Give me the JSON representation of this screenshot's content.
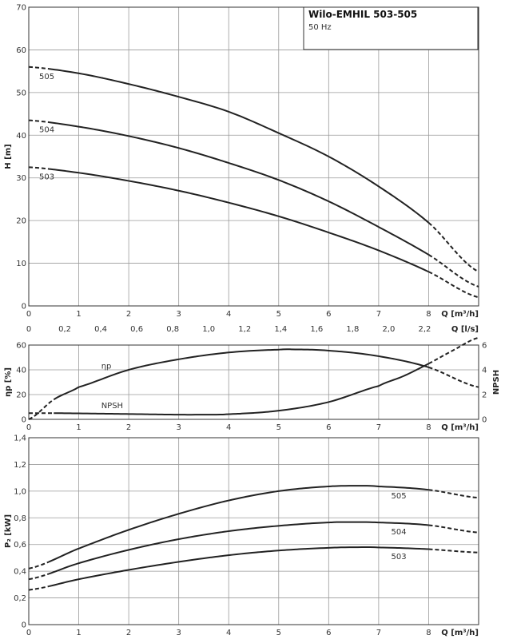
{
  "header": {
    "title": "Wilo-EMHIL 503-505",
    "subtitle": "50 Hz"
  },
  "chart_data": [
    {
      "type": "line",
      "name": "head",
      "ylabel": "H [m]",
      "xlabel": "Q [m³/h]",
      "xlabel2": "Q [l/s]",
      "xlim": [
        0,
        9
      ],
      "ylim": [
        0,
        70
      ],
      "xticks": [
        "0",
        "1",
        "2",
        "3",
        "4",
        "5",
        "6",
        "7",
        "8"
      ],
      "x2ticks": [
        "0",
        "0,2",
        "0,4",
        "0,6",
        "0,8",
        "1,0",
        "1,2",
        "1,4",
        "1,6",
        "1,8",
        "2,0",
        "2,2"
      ],
      "yticks": [
        "0",
        "10",
        "20",
        "30",
        "40",
        "50",
        "60",
        "70"
      ],
      "grid": true,
      "series": [
        {
          "name": "505",
          "x": [
            0,
            1,
            2,
            3,
            4,
            5,
            6,
            7,
            8,
            9
          ],
          "y": [
            56,
            54.5,
            52,
            49,
            45.5,
            40.5,
            35,
            28,
            19.5,
            8
          ]
        },
        {
          "name": "504",
          "x": [
            0,
            1,
            2,
            3,
            4,
            5,
            6,
            7,
            8,
            9
          ],
          "y": [
            43.5,
            42,
            39.8,
            37,
            33.5,
            29.5,
            24.5,
            18.5,
            12,
            4.5
          ]
        },
        {
          "name": "503",
          "x": [
            0,
            1,
            2,
            3,
            4,
            5,
            6,
            7,
            8,
            9
          ],
          "y": [
            32.5,
            31.2,
            29.3,
            27,
            24.2,
            21,
            17.2,
            13,
            8,
            2
          ]
        }
      ],
      "solid_range": [
        0.4,
        8
      ]
    },
    {
      "type": "line",
      "name": "efficiency_npsh",
      "ylabel": "ηp [%]",
      "y2label": "NPSH",
      "xlabel": "Q [m³/h]",
      "xlim": [
        0,
        9
      ],
      "ylim": [
        0,
        60
      ],
      "y2lim": [
        0,
        6
      ],
      "xticks": [
        "0",
        "1",
        "2",
        "3",
        "4",
        "5",
        "6",
        "7",
        "8"
      ],
      "yticks": [
        "0",
        "20",
        "40",
        "60"
      ],
      "y2ticks": [
        "0",
        "2",
        "4",
        "6"
      ],
      "grid": true,
      "series": [
        {
          "name": "ηp",
          "x": [
            0,
            0.5,
            1,
            2,
            3,
            4,
            5,
            5.3,
            6,
            7,
            8,
            9
          ],
          "y": [
            0,
            16,
            26,
            40,
            48.5,
            54,
            56.3,
            56.5,
            55.5,
            51,
            42,
            26
          ],
          "axis": "left",
          "solid_range": [
            0.5,
            8
          ]
        },
        {
          "name": "NPSH",
          "x": [
            0,
            0.5,
            1,
            2,
            3,
            3.5,
            4,
            5,
            6,
            7,
            7.5,
            8,
            8.5,
            9
          ],
          "y": [
            0.5,
            0.5,
            0.48,
            0.43,
            0.38,
            0.38,
            0.42,
            0.7,
            1.4,
            2.7,
            3.5,
            4.5,
            5.6,
            6.6
          ],
          "axis": "right",
          "solid_range": [
            0.5,
            8
          ]
        }
      ]
    },
    {
      "type": "line",
      "name": "power",
      "ylabel": "P₂ [kW]",
      "xlabel": "Q [m³/h]",
      "xlim": [
        0,
        9
      ],
      "ylim": [
        0,
        1.4
      ],
      "xticks": [
        "0",
        "1",
        "2",
        "3",
        "4",
        "5",
        "6",
        "7",
        "8"
      ],
      "yticks": [
        "0",
        "0,2",
        "0,4",
        "0,6",
        "0,8",
        "1,0",
        "1,2",
        "1,4"
      ],
      "grid": true,
      "series": [
        {
          "name": "505",
          "x": [
            0,
            1,
            2,
            3,
            4,
            5,
            6,
            6.7,
            7,
            8,
            9
          ],
          "y": [
            0.42,
            0.57,
            0.71,
            0.83,
            0.93,
            1.0,
            1.035,
            1.04,
            1.035,
            1.01,
            0.95
          ]
        },
        {
          "name": "504",
          "x": [
            0,
            1,
            2,
            3,
            4,
            5,
            6,
            6.5,
            7,
            8,
            9
          ],
          "y": [
            0.34,
            0.46,
            0.56,
            0.64,
            0.7,
            0.74,
            0.765,
            0.768,
            0.765,
            0.745,
            0.69
          ]
        },
        {
          "name": "503",
          "x": [
            0,
            1,
            2,
            3,
            4,
            5,
            6,
            6.6,
            7,
            8,
            9
          ],
          "y": [
            0.26,
            0.34,
            0.41,
            0.47,
            0.52,
            0.555,
            0.575,
            0.58,
            0.578,
            0.565,
            0.54
          ]
        }
      ],
      "solid_range": [
        0.4,
        8
      ]
    }
  ]
}
